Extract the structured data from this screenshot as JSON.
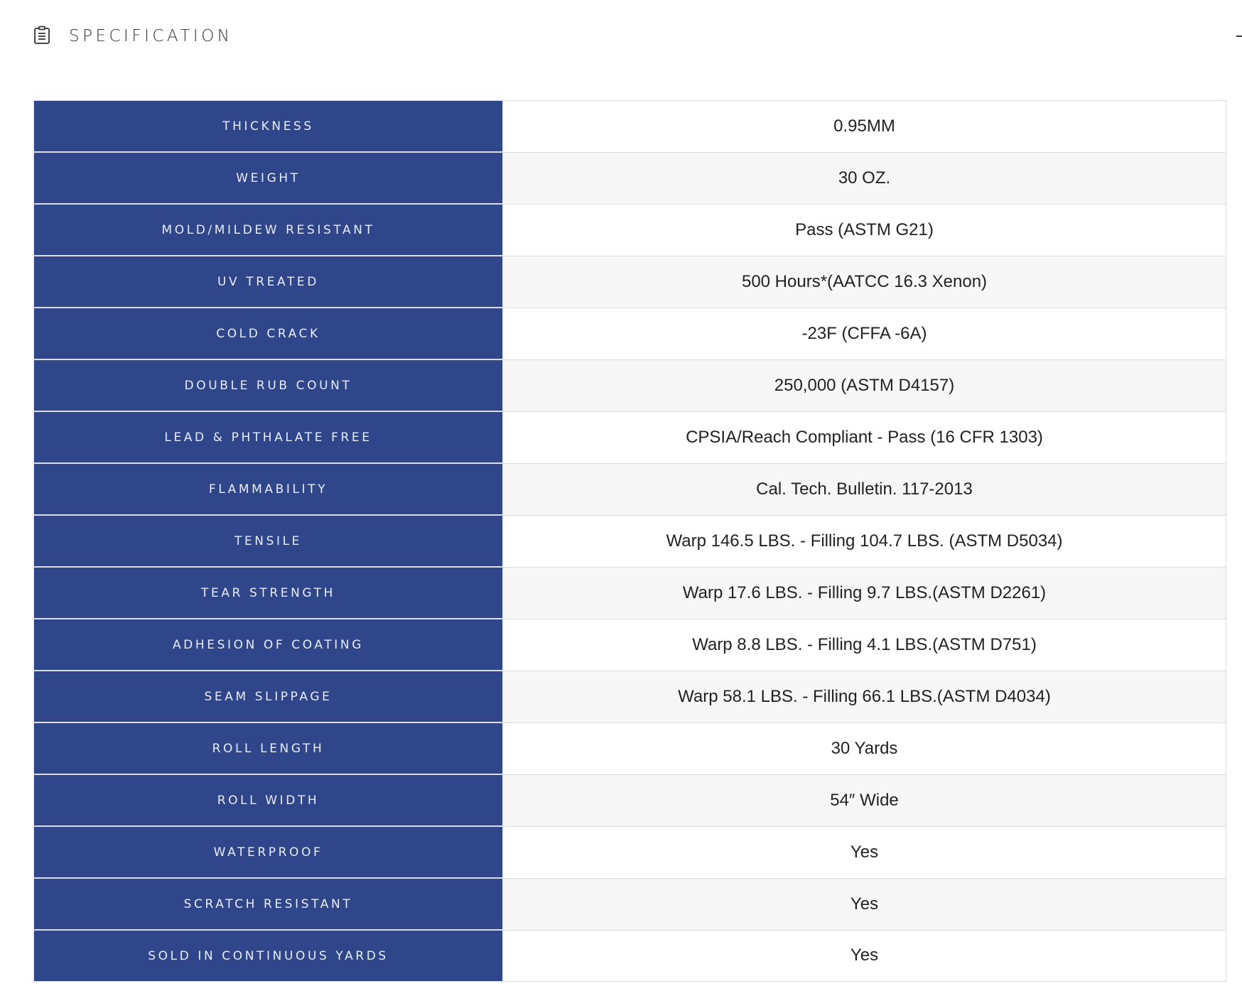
{
  "header": {
    "title": "SPECIFICATION",
    "icon": "clipboard-icon",
    "collapse_icon": "minus-icon"
  },
  "colors": {
    "label_bg": "#2f478a",
    "label_text": "#e8ecf6",
    "row_alt": "#f7f7f7"
  },
  "spec": [
    {
      "label": "THICKNESS",
      "value": "0.95MM"
    },
    {
      "label": "WEIGHT",
      "value": "30 OZ."
    },
    {
      "label": "MOLD/MILDEW RESISTANT",
      "value": "Pass (ASTM G21)"
    },
    {
      "label": "UV TREATED",
      "value": "500 Hours*(AATCC 16.3 Xenon)"
    },
    {
      "label": "COLD CRACK",
      "value": "-23F (CFFA -6A)"
    },
    {
      "label": "DOUBLE RUB COUNT",
      "value": "250,000 (ASTM D4157)"
    },
    {
      "label": "LEAD & PHTHALATE FREE",
      "value": "CPSIA/Reach Compliant - Pass (16 CFR 1303)"
    },
    {
      "label": "FLAMMABILITY",
      "value": "Cal. Tech. Bulletin. 117-2013"
    },
    {
      "label": "TENSILE",
      "value": "Warp 146.5 LBS. - Filling 104.7 LBS. (ASTM D5034)"
    },
    {
      "label": "TEAR STRENGTH",
      "value": "Warp 17.6 LBS. - Filling 9.7 LBS.(ASTM D2261)"
    },
    {
      "label": "ADHESION OF COATING",
      "value": "Warp 8.8 LBS. - Filling 4.1 LBS.(ASTM D751)"
    },
    {
      "label": "SEAM SLIPPAGE",
      "value": "Warp 58.1 LBS. - Filling 66.1 LBS.(ASTM D4034)"
    },
    {
      "label": "ROLL LENGTH",
      "value": "30 Yards"
    },
    {
      "label": "ROLL WIDTH",
      "value": "54″ Wide"
    },
    {
      "label": "WATERPROOF",
      "value": "Yes"
    },
    {
      "label": "SCRATCH RESISTANT",
      "value": "Yes"
    },
    {
      "label": "SOLD IN CONTINUOUS YARDS",
      "value": "Yes"
    }
  ]
}
